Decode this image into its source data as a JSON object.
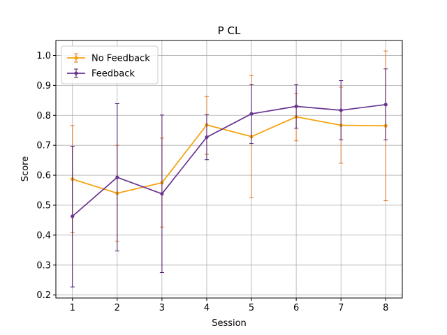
{
  "chart_data": {
    "type": "line",
    "title": "P CL",
    "xlabel": "Session",
    "ylabel": "Score",
    "x": [
      1,
      2,
      3,
      4,
      5,
      6,
      7,
      8
    ],
    "xlim": [
      0.63,
      8.37
    ],
    "ylim": [
      0.19,
      1.05
    ],
    "yticks": [
      0.2,
      0.3,
      0.4,
      0.5,
      0.6,
      0.7,
      0.8,
      0.9,
      1.0
    ],
    "ytick_labels": [
      "0.2",
      "0.3",
      "0.4",
      "0.5",
      "0.6",
      "0.7",
      "0.8",
      "0.9",
      "1.0"
    ],
    "xticks": [
      1,
      2,
      3,
      4,
      5,
      6,
      7,
      8
    ],
    "xtick_labels": [
      "1",
      "2",
      "3",
      "4",
      "5",
      "6",
      "7",
      "8"
    ],
    "grid": true,
    "legend_position": "top-left",
    "series": [
      {
        "name": "No Feedback",
        "color": "#f5a00a",
        "errcolor": "#e0782a",
        "values": [
          0.587,
          0.54,
          0.575,
          0.768,
          0.729,
          0.795,
          0.767,
          0.765
        ],
        "err_low": [
          0.408,
          0.38,
          0.427,
          0.67,
          0.525,
          0.715,
          0.64,
          0.515
        ],
        "err_high": [
          0.766,
          0.7,
          0.724,
          0.863,
          0.933,
          0.874,
          0.894,
          1.015
        ]
      },
      {
        "name": "Feedback",
        "color": "#6a3591",
        "errcolor": "#4b1a6e",
        "values": [
          0.463,
          0.593,
          0.538,
          0.727,
          0.805,
          0.83,
          0.817,
          0.836
        ],
        "err_low": [
          0.227,
          0.347,
          0.275,
          0.652,
          0.706,
          0.757,
          0.718,
          0.718
        ],
        "err_high": [
          0.697,
          0.839,
          0.801,
          0.802,
          0.902,
          0.902,
          0.916,
          0.955
        ]
      }
    ]
  }
}
